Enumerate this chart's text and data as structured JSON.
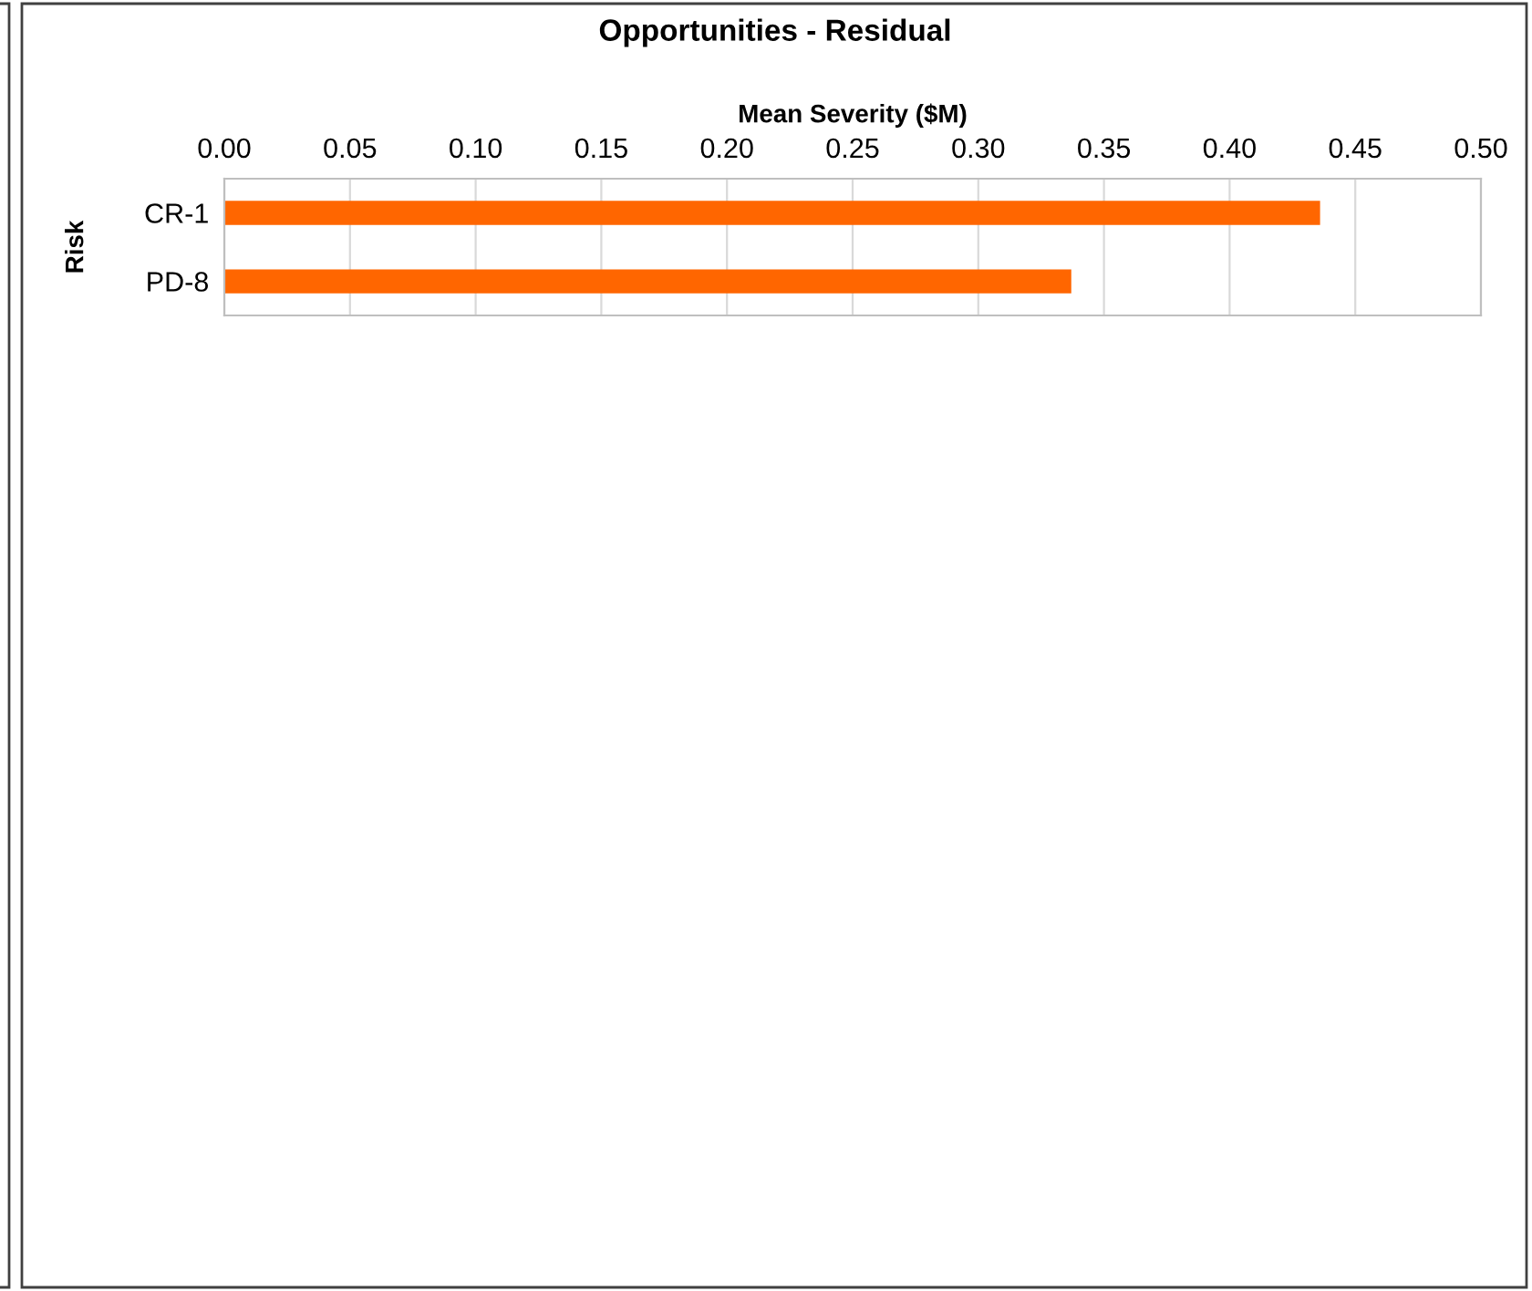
{
  "chart_data": {
    "type": "bar",
    "orientation": "horizontal",
    "title": "Opportunities - Residual",
    "xlabel": "Mean Severity ($M)",
    "ylabel": "Risk",
    "categories": [
      "CR-1",
      "PD-8"
    ],
    "series": [
      {
        "color": "#ff6600",
        "values": [
          0.436,
          0.337
        ]
      }
    ],
    "xlim": [
      0,
      0.5
    ],
    "xticks": [
      {
        "value": 0,
        "label": "0.00"
      },
      {
        "value": 0.05,
        "label": "0.05"
      },
      {
        "value": 0.1,
        "label": "0.10"
      },
      {
        "value": 0.15,
        "label": "0.15"
      },
      {
        "value": 0.2,
        "label": "0.20"
      },
      {
        "value": 0.25,
        "label": "0.25"
      },
      {
        "value": 0.3,
        "label": "0.30"
      },
      {
        "value": 0.35,
        "label": "0.35"
      },
      {
        "value": 0.4,
        "label": "0.40"
      },
      {
        "value": 0.45,
        "label": "0.45"
      },
      {
        "value": 0.5,
        "label": "0.50"
      }
    ],
    "grid": "x",
    "legend": false
  }
}
